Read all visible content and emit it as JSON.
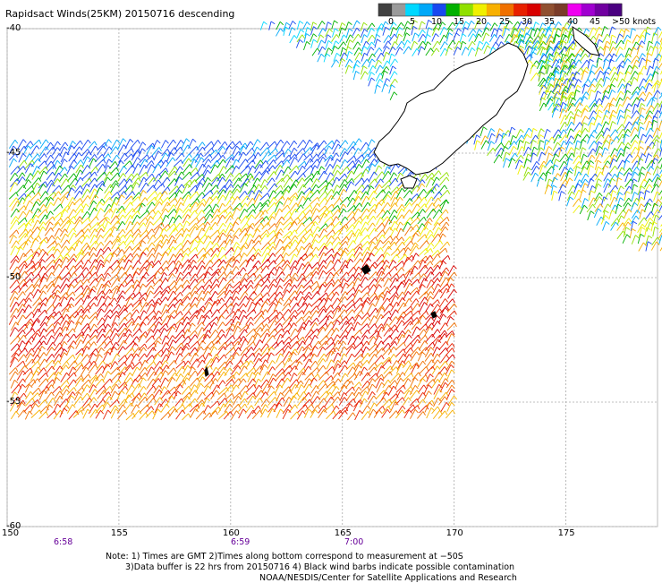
{
  "title": "Rapidsact Winds(25KM) 20150716 descending",
  "colorbar": {
    "labels": [
      "0",
      "5",
      "10",
      "15",
      "20",
      "25",
      "30",
      "35",
      "40",
      "45",
      ">50 knots"
    ],
    "colors": [
      "#404040",
      "#9a9a9a",
      "#00d8ff",
      "#00a8f8",
      "#1848f0",
      "#00b000",
      "#90e000",
      "#f0f000",
      "#f8b000",
      "#f07000",
      "#e82000",
      "#d80000",
      "#905030",
      "#7a3c28",
      "#f000f0",
      "#a000d0",
      "#7000a0",
      "#4a0080"
    ]
  },
  "axes": {
    "lon_ticks": [
      "150",
      "155",
      "160",
      "165",
      "170",
      "175"
    ],
    "lat_ticks": [
      "-40",
      "-45",
      "-50",
      "-55",
      "-60"
    ]
  },
  "times": [
    "6:58",
    "6:59",
    "7:00"
  ],
  "notes": [
    "Note: 1) Times are GMT 2)Times along bottom correspond to measurement at −50S",
    "3)Data buffer is 22 hrs from 20150716 4) Black wind barbs indicate possible contamination",
    "NOAA/NESDIS/Center for Satellite Applications and Research"
  ]
}
